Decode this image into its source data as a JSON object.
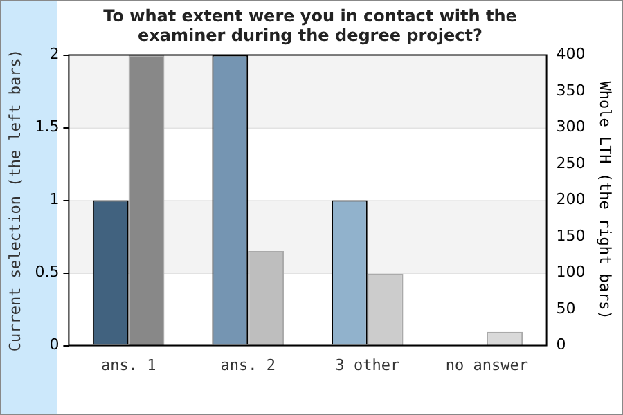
{
  "chart_data": {
    "type": "bar",
    "title": "To what extent were you in contact with the examiner during the degree project?",
    "categories": [
      "ans. 1",
      "ans. 2",
      "3 other",
      "no answer"
    ],
    "series": [
      {
        "colors": [
          "#41627f",
          "#7595b2",
          "#91b2cc",
          "#91b2cc"
        ],
        "values": [
          1,
          2,
          1,
          0
        ]
      },
      {
        "axis": "y2",
        "colors": [
          "#888888",
          "#bebebe",
          "#cccccc",
          "#d9d9d9"
        ],
        "values": [
          400,
          130,
          99,
          19
        ]
      }
    ],
    "ylabel": "Current selection (the left bars)",
    "y2label": "Whole LTH (the right bars)",
    "ylim": [
      0,
      2
    ],
    "yticks": [
      0,
      0.5,
      1,
      1.5,
      2
    ],
    "y2lim": [
      0,
      400
    ],
    "y2ticks": [
      0,
      50,
      100,
      150,
      200,
      250,
      300,
      350,
      400
    ],
    "grid": "y",
    "legend": false
  }
}
